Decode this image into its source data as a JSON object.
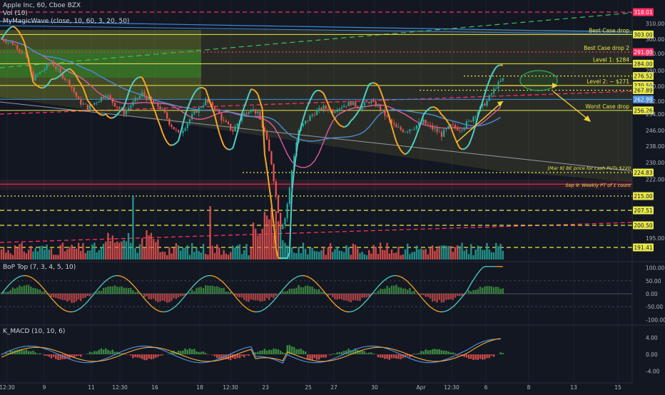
{
  "header": {
    "symbol_line": "Apple Inc, 60, Cboe BZX",
    "vol_line": "Vol (10)",
    "wave_line": "MyMagicWave (close, 10, 60, 3, 20, 50)"
  },
  "panes": {
    "bop_title": "BoP Top (7, 3, 4, 5, 10)",
    "macd_title": "K_MACD (10, 10, 6)"
  },
  "colors": {
    "background": "#131722",
    "up": "#26a69a",
    "down": "#ef5350",
    "wave_up": "#4dd0c4",
    "wave_down": "#f5a623",
    "level_yellow": "#e8e84a",
    "level_red": "#ff2e63",
    "pink_ma": "#e05aa0",
    "blue_ma": "#4a8cd8",
    "trend_blue": "#3d8bd9",
    "green_dash": "#3fbf5f",
    "arrow": "#f3d33a"
  },
  "chart_data": [
    {
      "type": "line",
      "pane": "price",
      "title": "Apple Inc, 60, Cboe BZX",
      "ylim": [
        186,
        320
      ],
      "y_ticks": [
        310.0,
        300.0,
        290.0,
        280.0,
        270.0,
        262.0,
        254.0,
        246.0,
        238.0,
        230.0,
        222.0,
        195.0
      ],
      "x_tick_labels": [
        "12:30",
        "9",
        "11",
        "12:30",
        "16",
        "18",
        "12:30",
        "23",
        "25",
        "27",
        "30",
        "Apr",
        "12:30",
        "6",
        "8",
        "13",
        "15"
      ],
      "price_series": [
        [
          0,
          300
        ],
        [
          5,
          297
        ],
        [
          10,
          290
        ],
        [
          14,
          275
        ],
        [
          18,
          280
        ],
        [
          22,
          285
        ],
        [
          26,
          278
        ],
        [
          30,
          272
        ],
        [
          34,
          262
        ],
        [
          38,
          258
        ],
        [
          42,
          262
        ],
        [
          46,
          266
        ],
        [
          50,
          260
        ],
        [
          54,
          255
        ],
        [
          58,
          261
        ],
        [
          62,
          266
        ],
        [
          66,
          262
        ],
        [
          70,
          258
        ],
        [
          74,
          250
        ],
        [
          78,
          244
        ],
        [
          82,
          250
        ],
        [
          86,
          256
        ],
        [
          90,
          262
        ],
        [
          94,
          258
        ],
        [
          98,
          250
        ],
        [
          102,
          246
        ],
        [
          106,
          253
        ],
        [
          110,
          258
        ],
        [
          113,
          254
        ],
        [
          116,
          245
        ],
        [
          119,
          230
        ],
        [
          121,
          215
        ],
        [
          123,
          200
        ],
        [
          125,
          204
        ],
        [
          127,
          218
        ],
        [
          129,
          234
        ],
        [
          131,
          246
        ],
        [
          134,
          250
        ],
        [
          138,
          255
        ],
        [
          142,
          258
        ],
        [
          146,
          256
        ],
        [
          150,
          259
        ],
        [
          154,
          261
        ],
        [
          158,
          258
        ],
        [
          162,
          262
        ],
        [
          166,
          259
        ],
        [
          170,
          252
        ],
        [
          174,
          247
        ],
        [
          178,
          246
        ],
        [
          182,
          248
        ],
        [
          186,
          250
        ],
        [
          190,
          247
        ],
        [
          194,
          244
        ],
        [
          198,
          248
        ],
        [
          202,
          247
        ],
        [
          206,
          250
        ],
        [
          210,
          256
        ],
        [
          214,
          262
        ],
        [
          218,
          270
        ],
        [
          222,
          276
        ]
      ],
      "series": [
        {
          "name": "MyMagicWave"
        },
        {
          "name": "Vol (10)"
        }
      ],
      "levels": [
        {
          "label": "318.01",
          "value": 318.01,
          "color": "red",
          "style": "dashed"
        },
        {
          "label": "303.00",
          "value": 303.0,
          "color": "yellow",
          "style": "solid",
          "note": "Best Case drop"
        },
        {
          "label": "291.00",
          "value": 291.0,
          "color": "red",
          "style": "dotted",
          "note": "Best Case drop 2"
        },
        {
          "label": "284.00",
          "value": 284.0,
          "color": "yellow",
          "style": "solid",
          "note": "Level 1: $284"
        },
        {
          "label": "276.52",
          "value": 276.52,
          "color": "yellow",
          "style": "dotted"
        },
        {
          "label": "270.50",
          "value": 270.5,
          "color": "yellow",
          "style": "solid",
          "note": "Level 2: ~ $271"
        },
        {
          "label": "267.89",
          "value": 267.89,
          "color": "yellow",
          "style": "dotted"
        },
        {
          "label": "262.98",
          "value": 262.98,
          "color": "blue",
          "style": "solid"
        },
        {
          "label": "256.26",
          "value": 256.26,
          "color": "yellow",
          "style": "solid",
          "note": "Worst Case drop"
        },
        {
          "label": "224.83",
          "value": 224.83,
          "color": "yellow",
          "style": "dotted",
          "note": "[Mar 9] BE price for cash PUTs $220"
        },
        {
          "label": "",
          "value": 220.0,
          "color": "red",
          "style": "solid",
          "note": "Sep 9: Weekly PT of 1 count"
        },
        {
          "label": "215.00",
          "value": 215.0,
          "color": "yellow",
          "style": "dotted"
        },
        {
          "label": "207.51",
          "value": 207.51,
          "color": "yellow",
          "style": "dashed"
        },
        {
          "label": "200.50",
          "value": 200.5,
          "color": "yellow",
          "style": "dashed"
        },
        {
          "label": "191.41",
          "value": 191.41,
          "color": "yellow",
          "style": "dashed"
        }
      ]
    },
    {
      "type": "line",
      "pane": "oscillator",
      "title": "BoP Top (7, 3, 4, 5, 10)",
      "ylim": [
        -110,
        110
      ],
      "y_ticks": [
        100.0,
        50.0,
        0.0,
        -50.0,
        -100.0
      ]
    },
    {
      "type": "bar",
      "pane": "macd",
      "title": "K_MACD (10, 10, 6)",
      "ylim": [
        -6,
        6
      ],
      "y_ticks": [
        4.0,
        0.0,
        -4.0
      ]
    }
  ]
}
